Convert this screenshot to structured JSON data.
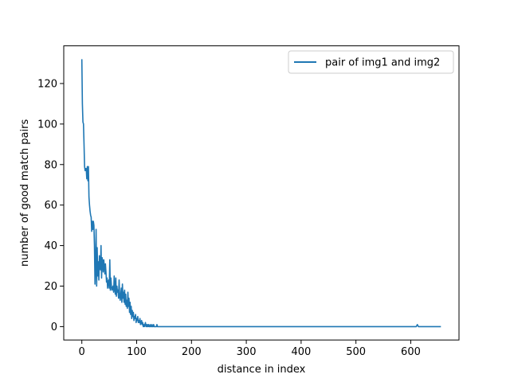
{
  "chart_data": {
    "type": "line",
    "title": "",
    "xlabel": "distance in index",
    "ylabel": "number of good match pairs",
    "xlim": [
      -33,
      688
    ],
    "ylim": [
      -6.6,
      138.6
    ],
    "xticks": [
      0,
      100,
      200,
      300,
      400,
      500,
      600
    ],
    "yticks": [
      0,
      20,
      40,
      60,
      80,
      100,
      120
    ],
    "xtick_labels": [
      "0",
      "100",
      "200",
      "300",
      "400",
      "500",
      "600"
    ],
    "ytick_labels": [
      "0",
      "20",
      "40",
      "60",
      "80",
      "100",
      "120"
    ],
    "grid": false,
    "legend_position": "upper right",
    "series": [
      {
        "name": "pair of img1 and img2",
        "color": "#1f77b4",
        "x": [
          0,
          1,
          2,
          3,
          4,
          5,
          6,
          7,
          8,
          9,
          10,
          11,
          12,
          13,
          14,
          15,
          16,
          17,
          18,
          19,
          20,
          21,
          22,
          23,
          24,
          25,
          26,
          27,
          28,
          29,
          30,
          31,
          32,
          33,
          34,
          35,
          36,
          37,
          38,
          39,
          40,
          41,
          42,
          43,
          44,
          45,
          46,
          47,
          48,
          49,
          50,
          51,
          52,
          53,
          54,
          55,
          56,
          57,
          58,
          59,
          60,
          61,
          62,
          63,
          64,
          65,
          66,
          67,
          68,
          69,
          70,
          71,
          72,
          73,
          74,
          75,
          76,
          77,
          78,
          79,
          80,
          81,
          82,
          83,
          84,
          85,
          86,
          87,
          88,
          89,
          90,
          91,
          92,
          93,
          94,
          95,
          96,
          97,
          98,
          99,
          100,
          101,
          102,
          103,
          104,
          105,
          106,
          107,
          108,
          109,
          110,
          111,
          112,
          113,
          114,
          115,
          116,
          117,
          118,
          119,
          120,
          121,
          122,
          123,
          124,
          125,
          126,
          127,
          128,
          129,
          130,
          131,
          132,
          133,
          134,
          135,
          136,
          137,
          138,
          139,
          140,
          141,
          142,
          143,
          144,
          145,
          146,
          147,
          148,
          149,
          150,
          151,
          152,
          153,
          154,
          155,
          156,
          157,
          158,
          159,
          160,
          161,
          162,
          163,
          164,
          165,
          166,
          167,
          168,
          169,
          170,
          200,
          300,
          400,
          500,
          600,
          610,
          612,
          614,
          620,
          655
        ],
        "y": [
          132,
          110,
          101,
          100,
          90,
          79,
          77,
          78,
          78,
          73,
          79,
          72,
          79,
          64,
          60,
          57,
          55,
          54,
          47,
          52,
          48,
          52,
          50,
          40,
          21,
          30,
          48,
          20,
          39,
          25,
          32,
          23,
          35,
          30,
          28,
          40,
          24,
          34,
          32,
          27,
          33,
          30,
          26,
          31,
          27,
          22,
          24,
          19,
          22,
          23,
          19,
          33,
          18,
          24,
          20,
          18,
          19,
          20,
          17,
          25,
          19,
          16,
          24,
          15,
          20,
          17,
          18,
          14,
          23,
          15,
          13,
          16,
          19,
          12,
          21,
          14,
          17,
          12,
          18,
          11,
          16,
          10,
          13,
          9,
          17,
          10,
          14,
          7,
          12,
          6,
          10,
          4,
          8,
          5,
          7,
          3,
          5,
          4,
          6,
          2,
          4,
          3,
          5,
          2,
          3,
          2,
          4,
          1,
          2,
          3,
          1,
          2,
          0,
          1,
          0,
          1,
          2,
          0,
          1,
          0,
          1,
          0,
          1,
          0,
          0,
          1,
          0,
          0,
          1,
          0,
          0,
          1,
          0,
          0,
          0,
          0,
          0,
          1,
          0,
          0,
          0,
          0,
          0,
          0,
          0,
          0,
          0,
          0,
          0,
          0,
          0,
          0,
          0,
          0,
          0,
          0,
          0,
          0,
          0,
          0,
          0,
          0,
          0,
          0,
          0,
          0,
          0,
          0,
          0,
          0,
          0,
          0,
          0,
          0,
          0,
          0,
          0,
          1,
          0,
          0,
          0
        ]
      }
    ]
  }
}
